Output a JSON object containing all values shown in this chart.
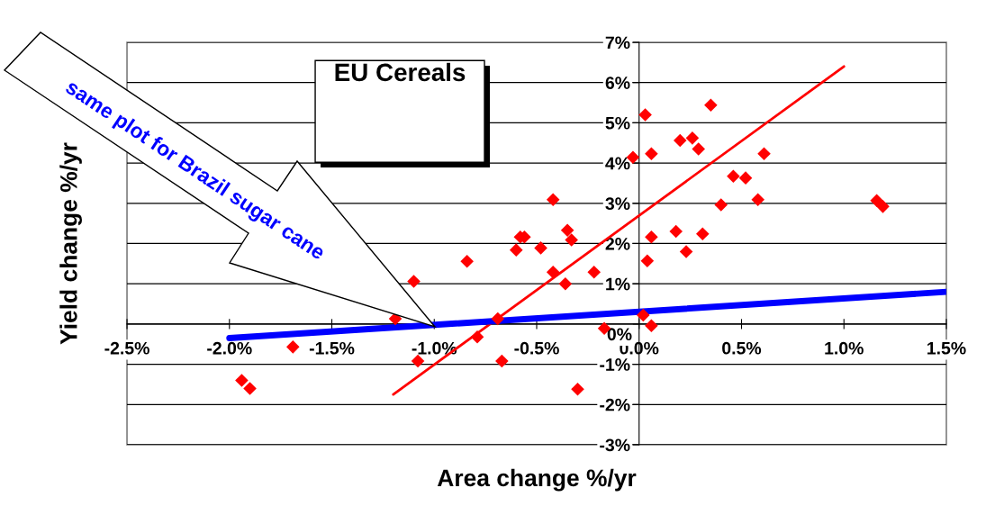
{
  "chart_data": {
    "type": "scatter",
    "title": "EU Cereals",
    "xlabel": "Area change %/yr",
    "ylabel": "Yield change %/yr",
    "xlim": [
      -2.5,
      1.5
    ],
    "ylim": [
      -3,
      7
    ],
    "xticks": [
      {
        "value": -2.5,
        "label": "-2.5%"
      },
      {
        "value": -2.0,
        "label": "-2.0%"
      },
      {
        "value": -1.5,
        "label": "-1.5%"
      },
      {
        "value": -1.0,
        "label": "-1.0%"
      },
      {
        "value": -0.5,
        "label": "-0.5%"
      },
      {
        "value": 0.0,
        "label": "0.0%"
      },
      {
        "value": 0.5,
        "label": "0.5%"
      },
      {
        "value": 1.0,
        "label": "1.0%"
      },
      {
        "value": 1.5,
        "label": "1.5%"
      }
    ],
    "yticks": [
      {
        "value": -3,
        "label": "-3%"
      },
      {
        "value": -2,
        "label": "-2%"
      },
      {
        "value": -1,
        "label": "-1%"
      },
      {
        "value": 0,
        "label": "0%"
      },
      {
        "value": 1,
        "label": "1%"
      },
      {
        "value": 2,
        "label": "2%"
      },
      {
        "value": 3,
        "label": "3%"
      },
      {
        "value": 4,
        "label": "4%"
      },
      {
        "value": 5,
        "label": "5%"
      },
      {
        "value": 6,
        "label": "6%"
      },
      {
        "value": 7,
        "label": "7%"
      }
    ],
    "grid": "y",
    "legend": false,
    "series": [
      {
        "color": "#ff0000",
        "marker": "diamond",
        "x": [
          -1.94,
          -1.9,
          -1.69,
          -1.19,
          -1.1,
          -1.08,
          -0.84,
          -0.79,
          -0.69,
          -0.67,
          -0.6,
          -0.58,
          -0.56,
          -0.48,
          -0.42,
          -0.42,
          -0.35,
          -0.33,
          -0.36,
          -0.22,
          -0.17,
          -0.3,
          -0.03,
          0.03,
          0.06,
          0.06,
          0.04,
          0.02,
          0.06,
          0.18,
          0.23,
          0.2,
          0.26,
          0.29,
          0.31,
          0.35,
          0.4,
          0.46,
          0.52,
          0.58,
          0.61,
          1.16,
          1.19
        ],
        "values": [
          -1.4,
          -1.6,
          -0.57,
          0.13,
          1.06,
          -0.92,
          1.56,
          -0.32,
          0.13,
          -0.92,
          1.84,
          2.16,
          2.16,
          1.89,
          3.09,
          1.29,
          2.33,
          2.09,
          1.0,
          1.29,
          -0.11,
          -1.62,
          4.14,
          5.2,
          4.23,
          2.16,
          1.57,
          0.22,
          -0.04,
          2.3,
          1.8,
          4.56,
          4.62,
          4.35,
          2.24,
          5.44,
          2.96,
          3.67,
          3.63,
          3.09,
          4.23,
          3.07,
          2.92
        ]
      },
      {
        "type": "line",
        "color": "#ff0000",
        "marker": "none",
        "line_style": "solid",
        "x": [
          -1.2,
          1.0
        ],
        "values": [
          -1.75,
          6.4
        ]
      },
      {
        "type": "line",
        "color": "#0000ff",
        "marker": "none",
        "line_style": "solid",
        "x": [
          -2.0,
          1.5
        ],
        "values": [
          -0.35,
          0.8
        ]
      }
    ],
    "annotations": [
      "same plot for Brazil sugar cane"
    ]
  }
}
